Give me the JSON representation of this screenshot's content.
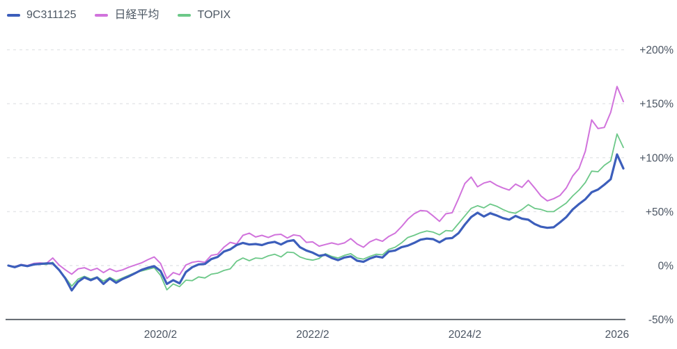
{
  "legend": {
    "items": [
      {
        "label": "9C311125",
        "color": "#3c5ebb"
      },
      {
        "label": "日経平均",
        "color": "#d173dc"
      },
      {
        "label": "TOPIX",
        "color": "#6cc888"
      }
    ]
  },
  "chart_data": {
    "type": "line",
    "title": "",
    "xlabel": "",
    "ylabel": "",
    "grid": "horizontal-dashed",
    "legend_position": "top-left",
    "y_axis_side": "right",
    "points_per_series": 98,
    "x_tick_interval_months": 24,
    "ylim": [
      -50,
      240
    ],
    "x_ticks": [
      {
        "label": "2020/2",
        "index": 24
      },
      {
        "label": "2022/2",
        "index": 48
      },
      {
        "label": "2024/2",
        "index": 72
      },
      {
        "label": "2026",
        "index": 96
      }
    ],
    "y_ticks": [
      {
        "label": "+200%",
        "value": 200
      },
      {
        "label": "+150%",
        "value": 150
      },
      {
        "label": "+100%",
        "value": 100
      },
      {
        "label": "+50%",
        "value": 50
      },
      {
        "label": "0%",
        "value": 0
      },
      {
        "label": "-50%",
        "value": -50
      }
    ],
    "series": [
      {
        "name": "9C311125",
        "color": "#3c5ebb",
        "width": 3.2,
        "values": [
          0,
          -1.5,
          0.5,
          -0.5,
          1,
          1.5,
          2,
          2,
          -4,
          -12,
          -23,
          -15,
          -11,
          -13.5,
          -11,
          -17,
          -12,
          -16,
          -12.5,
          -10,
          -7,
          -4,
          -2,
          -0.5,
          -5,
          -17,
          -13.5,
          -16.5,
          -6,
          -1.5,
          1,
          1.5,
          6,
          8,
          13,
          15,
          19,
          21,
          19.5,
          20,
          19,
          21,
          22,
          19.5,
          22.5,
          23.5,
          17,
          14,
          12,
          9,
          10,
          7,
          5,
          7.5,
          8.5,
          4.5,
          3.5,
          6.5,
          8.5,
          7.5,
          13,
          14,
          17,
          18.5,
          21,
          24,
          25,
          24.5,
          21.5,
          25,
          25.5,
          30,
          38,
          45,
          49,
          45.5,
          48.5,
          46.5,
          44,
          42.5,
          46,
          43.5,
          42.5,
          38.5,
          36,
          35,
          35.5,
          40,
          45,
          52,
          57,
          61.5,
          68,
          70.5,
          75,
          80,
          103,
          90
        ]
      },
      {
        "name": "日経平均",
        "color": "#d173dc",
        "width": 2,
        "values": [
          0,
          -1,
          1,
          0,
          2,
          2.5,
          2,
          7,
          0.5,
          -4,
          -8,
          -3,
          -2,
          -4.5,
          -2.5,
          -6.5,
          -3,
          -5.5,
          -4,
          -1.5,
          0.5,
          2.5,
          5.5,
          8,
          2,
          -12,
          -6.5,
          -8.5,
          0.5,
          3,
          4,
          3,
          9.5,
          10.5,
          17,
          21.5,
          20,
          28,
          30,
          26.5,
          28,
          26,
          28.5,
          29,
          25.5,
          28.5,
          27.5,
          21.5,
          22,
          18,
          19.5,
          21,
          19.5,
          21,
          25,
          20,
          17,
          22,
          24.5,
          22.5,
          27,
          30,
          36,
          43,
          48,
          51,
          50.5,
          46,
          41,
          48,
          49,
          62,
          76,
          82,
          73,
          76.5,
          78,
          74.5,
          72,
          70,
          75.5,
          72.5,
          79,
          72,
          64.5,
          60,
          62,
          65,
          72,
          83,
          90,
          106,
          135,
          127,
          128,
          142,
          166,
          152
        ]
      },
      {
        "name": "TOPIX",
        "color": "#6cc888",
        "width": 1.8,
        "values": [
          0,
          -1,
          0.5,
          0,
          1,
          1.5,
          1,
          3,
          -4.5,
          -11,
          -19,
          -12.5,
          -10,
          -12.5,
          -10.5,
          -14.5,
          -11,
          -14,
          -11.5,
          -9,
          -6.5,
          -5,
          -3.5,
          -2,
          -9,
          -22.5,
          -17,
          -19.5,
          -13.5,
          -14,
          -10.5,
          -11.5,
          -8,
          -7,
          -4.5,
          -3,
          4,
          7,
          4.5,
          7,
          6.5,
          9,
          10.5,
          8,
          12.5,
          12,
          8,
          6,
          5,
          6.5,
          11,
          8.5,
          7,
          9.5,
          11,
          7,
          6,
          8.5,
          10.5,
          10,
          15,
          17,
          21,
          26,
          28,
          30.5,
          32,
          31,
          28.5,
          32.5,
          32,
          39,
          46,
          53,
          55.5,
          53.5,
          57,
          55,
          52,
          49.5,
          48.5,
          52,
          56.5,
          53,
          52,
          50,
          50,
          54,
          58,
          64.5,
          70,
          77,
          87.5,
          87,
          93,
          97,
          122,
          109.5
        ]
      }
    ]
  }
}
